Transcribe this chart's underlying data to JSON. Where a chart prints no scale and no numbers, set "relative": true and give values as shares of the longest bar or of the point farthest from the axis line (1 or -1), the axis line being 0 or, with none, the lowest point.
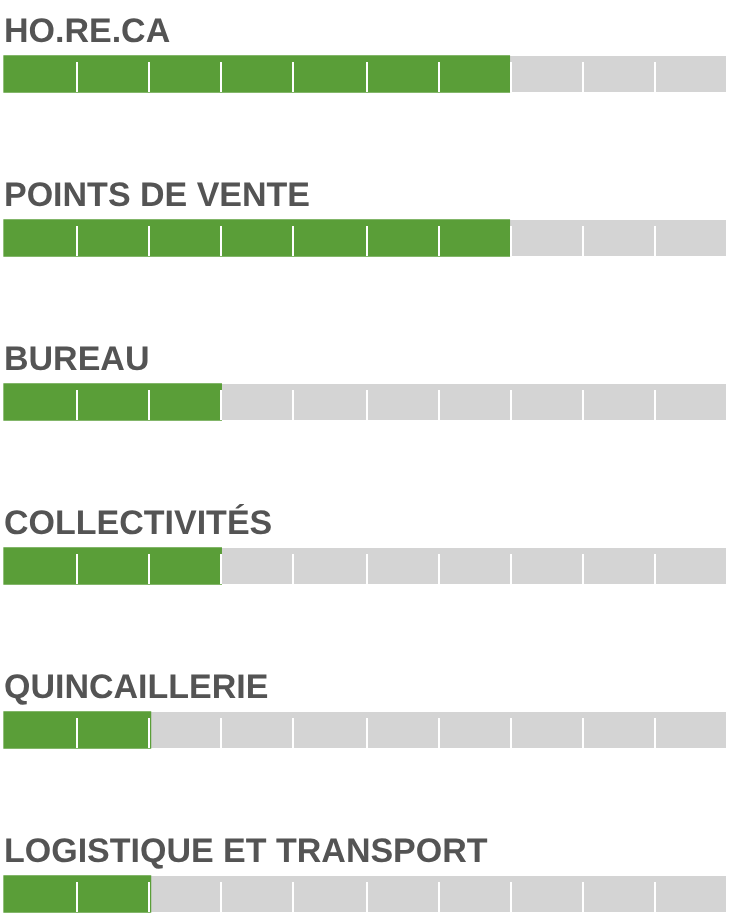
{
  "chart_data": {
    "type": "bar",
    "orientation": "horizontal",
    "relative": true,
    "categories": [
      "HO.RE.CA",
      "POINTS DE VENTE",
      "BUREAU",
      "COLLECTIVITÉS",
      "QUINCAILLERIE",
      "LOGISTIQUE ET TRANSPORT"
    ],
    "values": [
      1,
      1,
      0.43,
      0.43,
      0.29,
      0.29
    ],
    "color": "#5a9e38"
  }
}
